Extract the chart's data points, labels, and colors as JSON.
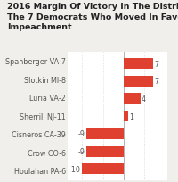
{
  "title": "2016 Margin Of Victory In The Districts Of\nThe 7 Democrats Who Moved In Favor Of\nImpeachment",
  "categories": [
    "Spanberger VA-7",
    "Slotkin MI-8",
    "Luria VA-2",
    "Sherrill NJ-11",
    "Cisneros CA-39",
    "Crow CO-6",
    "Houlahan PA-6"
  ],
  "values": [
    7,
    7,
    4,
    1,
    -9,
    -9,
    -10
  ],
  "bar_color": "#e04030",
  "text_color": "#555555",
  "title_color": "#222222",
  "title_fontsize": 6.8,
  "label_fontsize": 5.8,
  "value_fontsize": 5.8,
  "bg_color": "#f0efeb",
  "chart_bg": "#ffffff",
  "xlim": [
    -13.5,
    10.5
  ],
  "grid_lines": [
    -10,
    -5,
    0,
    5,
    10
  ]
}
